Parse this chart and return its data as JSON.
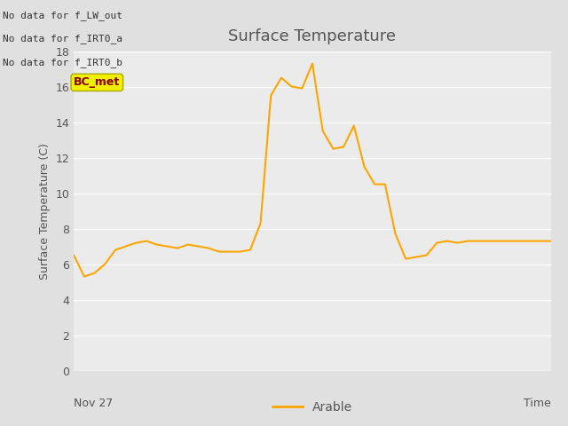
{
  "title": "Surface Temperature",
  "ylabel": "Surface Temperature (C)",
  "xlabel_right": "Time",
  "xlabel_bottom_left": "Nov 27",
  "ylim": [
    0,
    18
  ],
  "yticks": [
    0,
    2,
    4,
    6,
    8,
    10,
    12,
    14,
    16,
    18
  ],
  "line_color": "#FFA500",
  "line_width": 1.5,
  "fig_bg_color": "#E0E0E0",
  "plot_bg_color": "#EBEBEB",
  "legend_label": "Arable",
  "annotation_lines": [
    "No data for f_LW_out",
    "No data for f_IRT0_a",
    "No data for f_IRT0_b"
  ],
  "bc_met_label": "BC_met",
  "x_values": [
    0,
    1,
    2,
    3,
    4,
    5,
    6,
    7,
    8,
    9,
    10,
    11,
    12,
    13,
    14,
    15,
    16,
    17,
    18,
    19,
    20,
    21,
    22,
    23,
    24,
    25,
    26,
    27,
    28,
    29,
    30,
    31,
    32,
    33,
    34,
    35,
    36,
    37,
    38,
    39,
    40,
    41,
    42,
    43,
    44,
    45,
    46
  ],
  "y_values": [
    6.5,
    5.3,
    5.5,
    6.0,
    6.8,
    7.0,
    7.2,
    7.3,
    7.1,
    7.0,
    6.9,
    7.1,
    7.0,
    6.9,
    6.7,
    6.7,
    6.7,
    6.8,
    8.3,
    15.5,
    16.5,
    16.0,
    15.9,
    17.3,
    13.5,
    12.5,
    12.6,
    13.8,
    11.5,
    10.5,
    10.5,
    7.7,
    6.3,
    6.4,
    6.5,
    7.2,
    7.3,
    7.2,
    7.3,
    7.3,
    7.3,
    7.3,
    7.3,
    7.3,
    7.3,
    7.3,
    7.3
  ],
  "anno_fontsize": 8,
  "title_fontsize": 13,
  "ylabel_fontsize": 9,
  "legend_fontsize": 10,
  "tick_fontsize": 9
}
